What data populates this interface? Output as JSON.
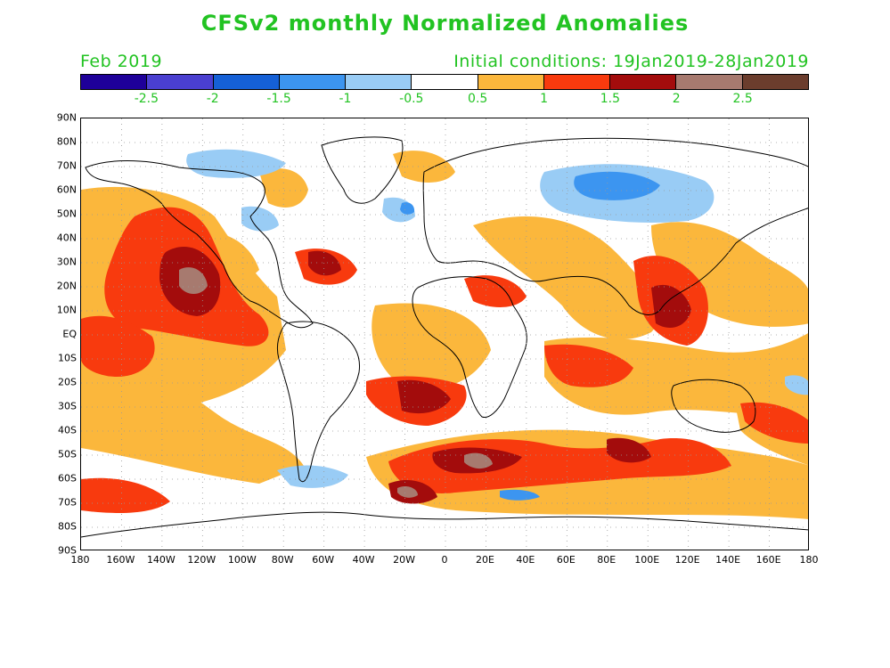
{
  "title": "CFSv2 monthly Normalized Anomalies",
  "valid_month": "Feb 2019",
  "initial_conditions": "Initial conditions: 19Jan2019-28Jan2019",
  "colorbar": {
    "colors": [
      "#1e0099",
      "#4a3fd0",
      "#1560d6",
      "#3c95f0",
      "#99ccf5",
      "#ffffff",
      "#fbb73c",
      "#f83a0e",
      "#a30c0c",
      "#a77a6f",
      "#6b3d2d"
    ],
    "tick_labels": [
      "-2.5",
      "-2",
      "-1.5",
      "-1",
      "-0.5",
      "0.5",
      "1",
      "1.5",
      "2",
      "2.5"
    ]
  },
  "axes": {
    "lat_labels": [
      "90N",
      "80N",
      "70N",
      "60N",
      "50N",
      "40N",
      "30N",
      "20N",
      "10N",
      "EQ",
      "10S",
      "20S",
      "30S",
      "40S",
      "50S",
      "60S",
      "70S",
      "80S",
      "90S"
    ],
    "lon_labels": [
      "180",
      "160W",
      "140W",
      "120W",
      "100W",
      "80W",
      "60W",
      "40W",
      "20W",
      "0",
      "20E",
      "40E",
      "60E",
      "80E",
      "100E",
      "120E",
      "140E",
      "160E",
      "180"
    ]
  }
}
